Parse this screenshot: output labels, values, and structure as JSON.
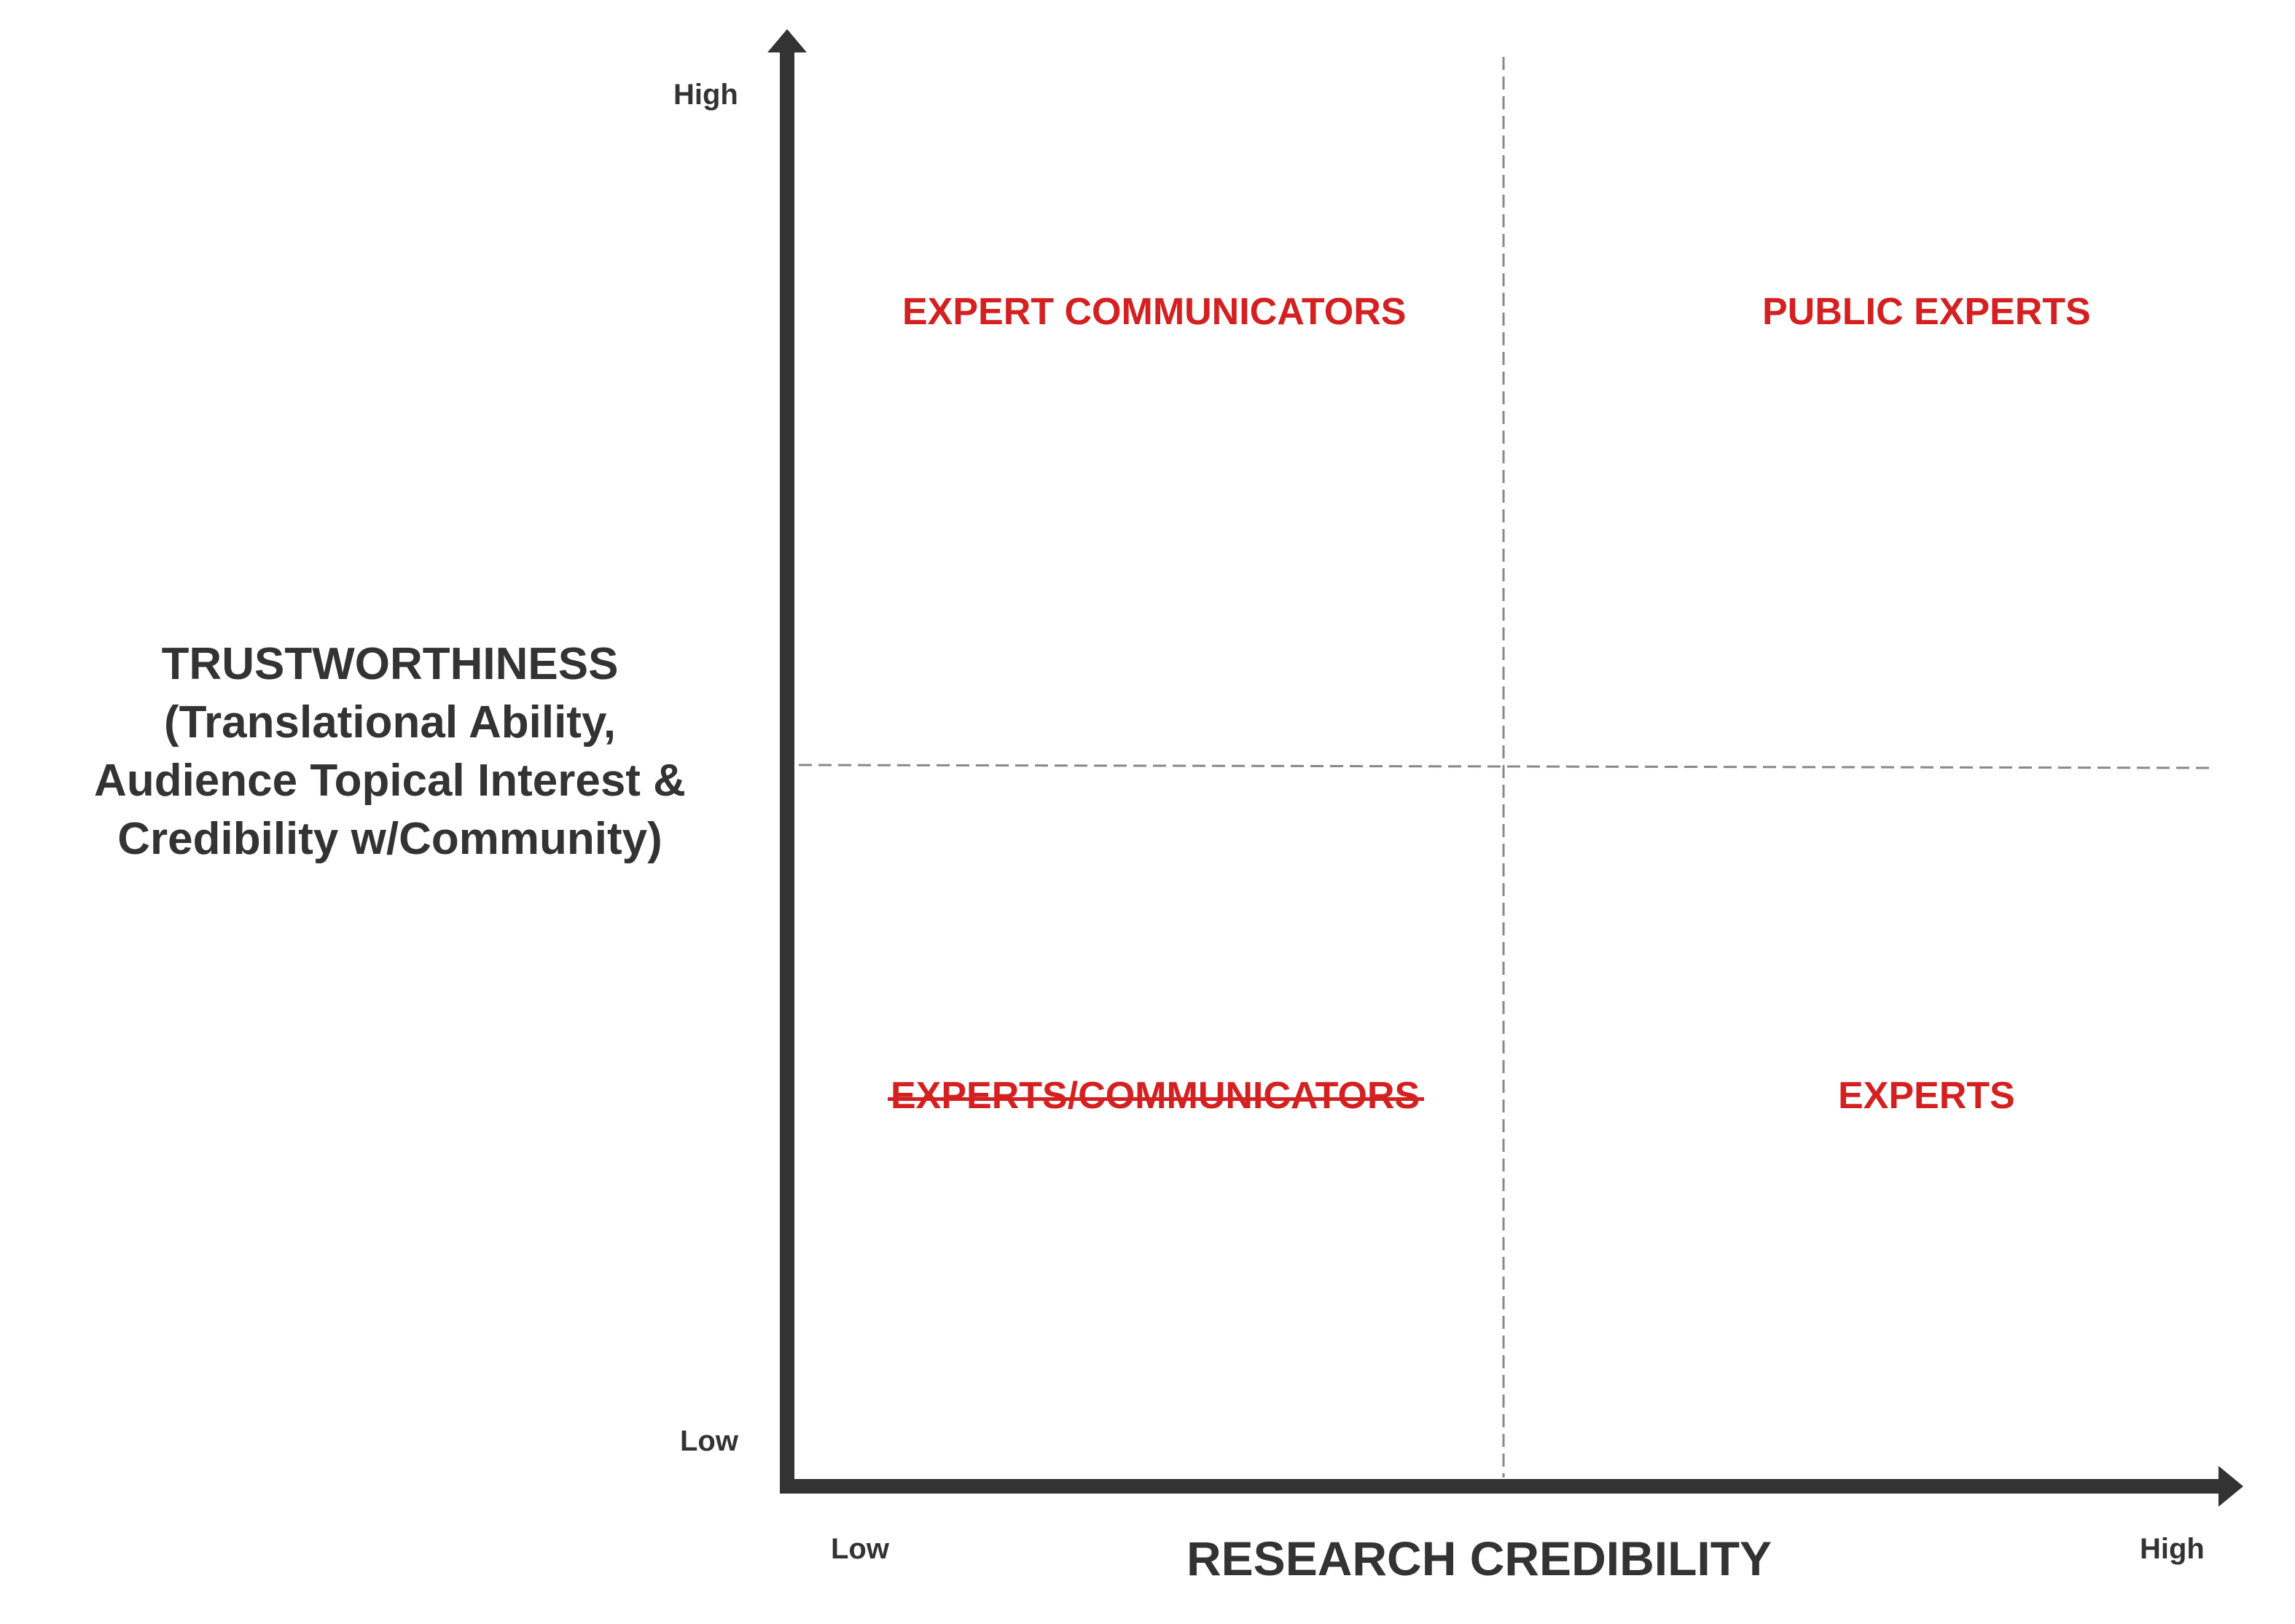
{
  "y_axis": {
    "high_label": "High",
    "low_label": "Low",
    "title_lines": [
      "TRUSTWORTHINESS",
      "(Translational Ability,",
      "Audience Topical Interest &",
      "Credibility w/Community)"
    ]
  },
  "x_axis": {
    "low_label": "Low",
    "high_label": "High",
    "title": "RESEARCH CREDIBILITY"
  },
  "quadrants": {
    "top_left": "EXPERT COMMUNICATORS",
    "top_right": "PUBLIC EXPERTS",
    "bottom_left": "EXPERTS/COMMUNICATORS",
    "bottom_right": "EXPERTS"
  },
  "colors": {
    "axis": "#333333",
    "quadrant_text": "#d42020",
    "divider": "#888888"
  }
}
